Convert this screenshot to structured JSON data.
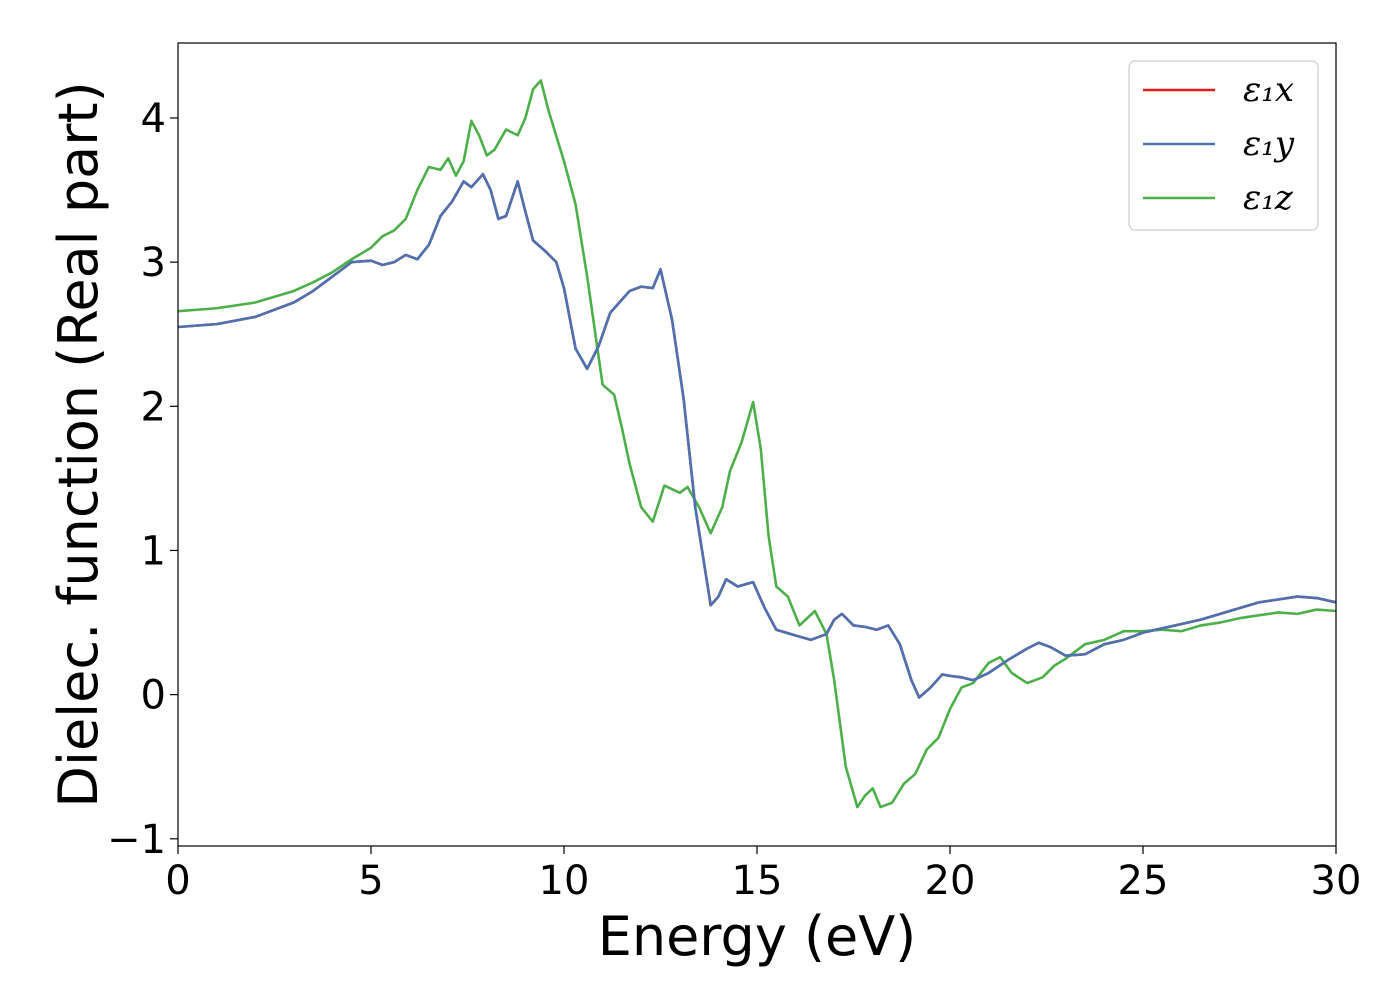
{
  "chart_data": {
    "type": "line",
    "xlabel": "Energy (eV)",
    "ylabel": "Dielec. function (Real part)",
    "xlim": [
      0,
      30
    ],
    "ylim": [
      -1.05,
      4.52
    ],
    "xticks": [
      0,
      5,
      10,
      15,
      20,
      25,
      30
    ],
    "xtick_labels": [
      "0",
      "5",
      "10",
      "15",
      "20",
      "25",
      "30"
    ],
    "yticks": [
      -1,
      0,
      1,
      2,
      3,
      4
    ],
    "ytick_labels": [
      "−1",
      "0",
      "1",
      "2",
      "3",
      "4"
    ],
    "grid": false,
    "legend_position": "top-right",
    "series": [
      {
        "name": "ε₁x",
        "color": "#e41a1c",
        "x": [
          0,
          1,
          2,
          3,
          3.5,
          4,
          4.5,
          5,
          5.3,
          5.6,
          5.9,
          6.2,
          6.5,
          6.8,
          7.1,
          7.4,
          7.6,
          7.9,
          8.1,
          8.3,
          8.5,
          8.8,
          9.0,
          9.2,
          9.5,
          9.8,
          10.0,
          10.3,
          10.6,
          10.9,
          11.2,
          11.7,
          12.0,
          12.3,
          12.5,
          12.8,
          13.1,
          13.4,
          13.8,
          14.0,
          14.2,
          14.5,
          14.9,
          15.2,
          15.5,
          16.0,
          16.4,
          16.8,
          17.0,
          17.2,
          17.5,
          17.8,
          18.1,
          18.4,
          18.7,
          19.0,
          19.2,
          19.5,
          19.8,
          20.0,
          20.3,
          20.6,
          21.0,
          21.5,
          22.0,
          22.3,
          22.6,
          23.0,
          23.5,
          24.0,
          24.5,
          25.0,
          25.5,
          26.0,
          26.5,
          27.0,
          27.5,
          28.0,
          28.5,
          29.0,
          29.5,
          30.0
        ],
        "y": [
          2.55,
          2.57,
          2.62,
          2.72,
          2.8,
          2.9,
          3.0,
          3.01,
          2.98,
          3.0,
          3.05,
          3.02,
          3.12,
          3.32,
          3.42,
          3.56,
          3.52,
          3.61,
          3.5,
          3.3,
          3.32,
          3.56,
          3.35,
          3.15,
          3.08,
          3.0,
          2.82,
          2.4,
          2.26,
          2.42,
          2.65,
          2.8,
          2.83,
          2.82,
          2.95,
          2.6,
          2.05,
          1.3,
          0.62,
          0.68,
          0.8,
          0.75,
          0.78,
          0.6,
          0.45,
          0.41,
          0.38,
          0.42,
          0.52,
          0.56,
          0.48,
          0.47,
          0.45,
          0.48,
          0.35,
          0.1,
          -0.02,
          0.05,
          0.14,
          0.13,
          0.12,
          0.1,
          0.15,
          0.24,
          0.32,
          0.36,
          0.33,
          0.27,
          0.28,
          0.35,
          0.38,
          0.43,
          0.46,
          0.49,
          0.52,
          0.56,
          0.6,
          0.64,
          0.66,
          0.68,
          0.67,
          0.64
        ]
      },
      {
        "name": "ε₁y",
        "color": "#4c72b0",
        "x": [
          0,
          1,
          2,
          3,
          3.5,
          4,
          4.5,
          5,
          5.3,
          5.6,
          5.9,
          6.2,
          6.5,
          6.8,
          7.1,
          7.4,
          7.6,
          7.9,
          8.1,
          8.3,
          8.5,
          8.8,
          9.0,
          9.2,
          9.5,
          9.8,
          10.0,
          10.3,
          10.6,
          10.9,
          11.2,
          11.7,
          12.0,
          12.3,
          12.5,
          12.8,
          13.1,
          13.4,
          13.8,
          14.0,
          14.2,
          14.5,
          14.9,
          15.2,
          15.5,
          16.0,
          16.4,
          16.8,
          17.0,
          17.2,
          17.5,
          17.8,
          18.1,
          18.4,
          18.7,
          19.0,
          19.2,
          19.5,
          19.8,
          20.0,
          20.3,
          20.6,
          21.0,
          21.5,
          22.0,
          22.3,
          22.6,
          23.0,
          23.5,
          24.0,
          24.5,
          25.0,
          25.5,
          26.0,
          26.5,
          27.0,
          27.5,
          28.0,
          28.5,
          29.0,
          29.5,
          30.0
        ],
        "y": [
          2.55,
          2.57,
          2.62,
          2.72,
          2.8,
          2.9,
          3.0,
          3.01,
          2.98,
          3.0,
          3.05,
          3.02,
          3.12,
          3.32,
          3.42,
          3.56,
          3.52,
          3.61,
          3.5,
          3.3,
          3.32,
          3.56,
          3.35,
          3.15,
          3.08,
          3.0,
          2.82,
          2.4,
          2.26,
          2.42,
          2.65,
          2.8,
          2.83,
          2.82,
          2.95,
          2.6,
          2.05,
          1.3,
          0.62,
          0.68,
          0.8,
          0.75,
          0.78,
          0.6,
          0.45,
          0.41,
          0.38,
          0.42,
          0.52,
          0.56,
          0.48,
          0.47,
          0.45,
          0.48,
          0.35,
          0.1,
          -0.02,
          0.05,
          0.14,
          0.13,
          0.12,
          0.1,
          0.15,
          0.24,
          0.32,
          0.36,
          0.33,
          0.27,
          0.28,
          0.35,
          0.38,
          0.43,
          0.46,
          0.49,
          0.52,
          0.56,
          0.6,
          0.64,
          0.66,
          0.68,
          0.67,
          0.64
        ]
      },
      {
        "name": "ε₁z",
        "color": "#4daf4a",
        "x": [
          0,
          1,
          2,
          3,
          3.5,
          4,
          4.5,
          5,
          5.3,
          5.6,
          5.9,
          6.2,
          6.5,
          6.8,
          7.0,
          7.2,
          7.4,
          7.6,
          7.8,
          8.0,
          8.2,
          8.5,
          8.8,
          9.0,
          9.2,
          9.4,
          9.6,
          10.0,
          10.3,
          10.6,
          11.0,
          11.3,
          11.5,
          11.7,
          12.0,
          12.3,
          12.6,
          13.0,
          13.2,
          13.5,
          13.8,
          14.1,
          14.3,
          14.6,
          14.9,
          15.1,
          15.3,
          15.5,
          15.8,
          16.1,
          16.5,
          16.8,
          17.0,
          17.3,
          17.6,
          17.8,
          18.0,
          18.2,
          18.5,
          18.8,
          19.1,
          19.4,
          19.7,
          20.0,
          20.3,
          20.6,
          21.0,
          21.3,
          21.6,
          22.0,
          22.4,
          22.7,
          23.0,
          23.5,
          24.0,
          24.5,
          25.0,
          25.5,
          26.0,
          26.5,
          27.0,
          27.5,
          28.0,
          28.5,
          29.0,
          29.5,
          30.0
        ],
        "y": [
          2.66,
          2.68,
          2.72,
          2.8,
          2.86,
          2.93,
          3.02,
          3.1,
          3.18,
          3.22,
          3.3,
          3.5,
          3.66,
          3.64,
          3.72,
          3.6,
          3.7,
          3.98,
          3.88,
          3.74,
          3.78,
          3.92,
          3.88,
          4.0,
          4.2,
          4.26,
          4.05,
          3.7,
          3.4,
          2.9,
          2.15,
          2.08,
          1.85,
          1.6,
          1.3,
          1.2,
          1.45,
          1.4,
          1.44,
          1.3,
          1.12,
          1.3,
          1.55,
          1.75,
          2.03,
          1.7,
          1.1,
          0.75,
          0.68,
          0.48,
          0.58,
          0.42,
          0.1,
          -0.5,
          -0.78,
          -0.7,
          -0.65,
          -0.78,
          -0.75,
          -0.62,
          -0.55,
          -0.38,
          -0.3,
          -0.1,
          0.05,
          0.08,
          0.22,
          0.26,
          0.15,
          0.08,
          0.12,
          0.2,
          0.25,
          0.35,
          0.38,
          0.44,
          0.44,
          0.45,
          0.44,
          0.48,
          0.5,
          0.53,
          0.55,
          0.57,
          0.56,
          0.59,
          0.58
        ]
      }
    ]
  }
}
